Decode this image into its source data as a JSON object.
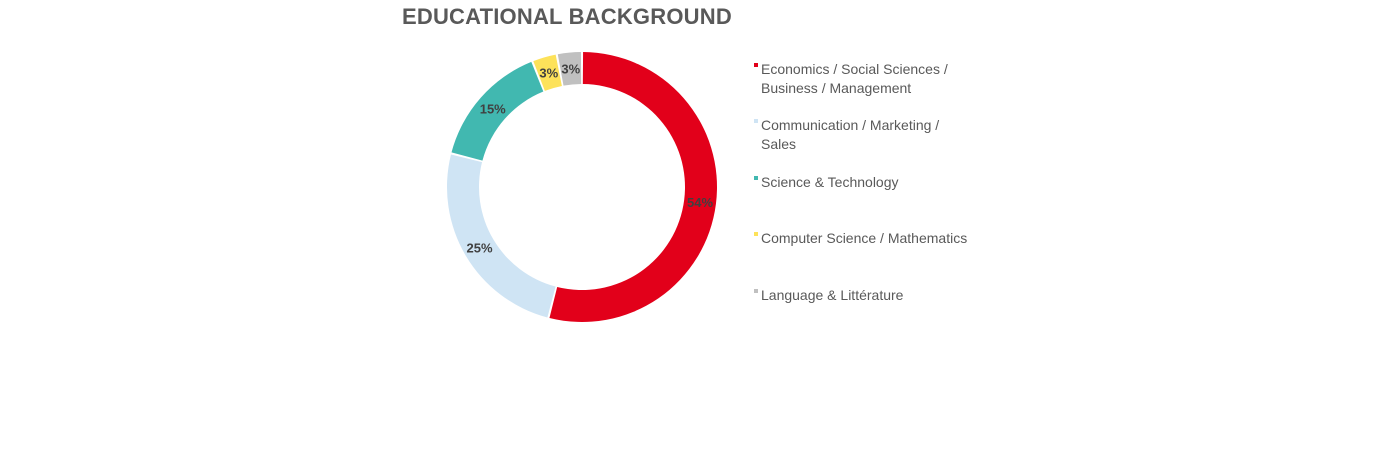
{
  "chart_data": {
    "type": "pie",
    "variant": "donut",
    "title": "EDUCATIONAL BACKGROUND",
    "legend_position": "right",
    "slices": [
      {
        "label": "Economics / Social Sciences / Business / Management",
        "value": 54,
        "display": "54%",
        "color": "#e2001a"
      },
      {
        "label": "Communication / Marketing / Sales",
        "value": 25,
        "display": "25%",
        "color": "#cfe4f4"
      },
      {
        "label": "Science & Technology",
        "value": 15,
        "display": "15%",
        "color": "#41b8b0"
      },
      {
        "label": "Computer Science / Mathematics",
        "value": 3,
        "display": "3%",
        "color": "#fde25a"
      },
      {
        "label": "Language & Littérature",
        "value": 3,
        "display": "3%",
        "color": "#c0c0c0"
      }
    ]
  }
}
